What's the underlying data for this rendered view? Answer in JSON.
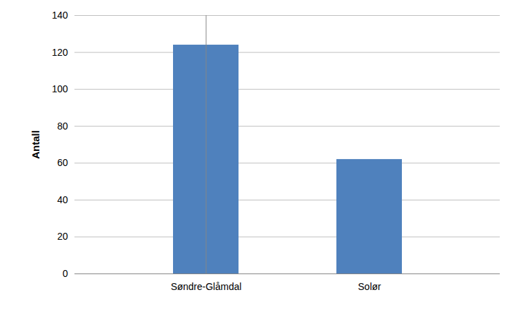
{
  "chart_data": {
    "type": "bar",
    "y_label": "Antall",
    "categories": [
      "Søndre-Glåmdal",
      "Solør"
    ],
    "values": [
      124,
      62
    ],
    "color": "#4f81bd",
    "ylim": [
      0,
      140
    ],
    "yticks": [
      0,
      20,
      40,
      60,
      80,
      100,
      120,
      140
    ],
    "grid": true
  }
}
